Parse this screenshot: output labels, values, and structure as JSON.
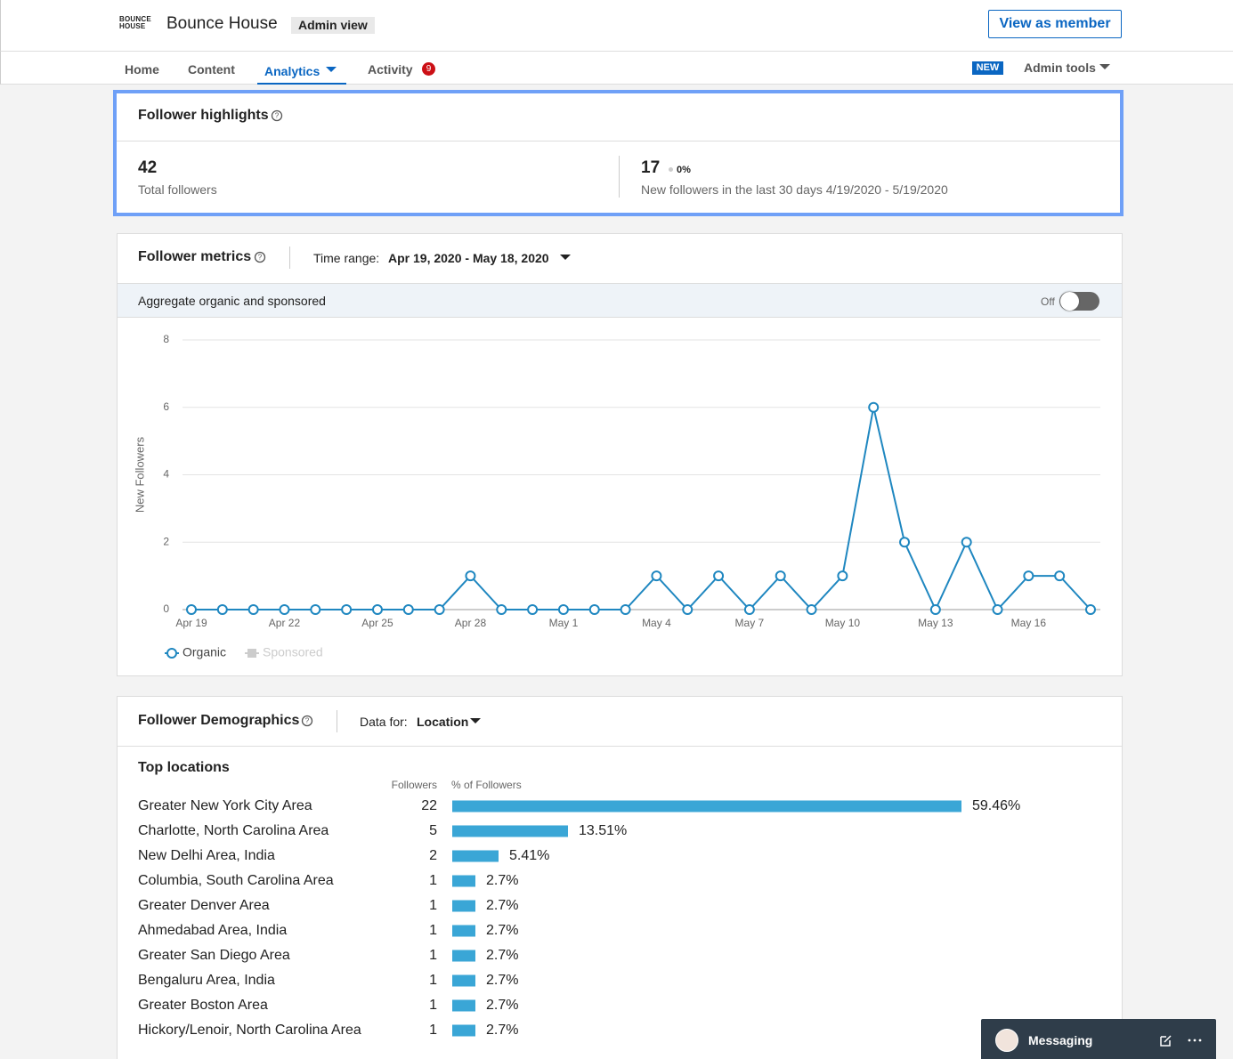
{
  "header": {
    "logo": [
      "BOUNCE",
      "HOUSE"
    ],
    "name": "Bounce House",
    "badge": "Admin view",
    "button": "View as member"
  },
  "nav": {
    "tabs": [
      "Home",
      "Content",
      "Analytics",
      "Activity"
    ],
    "activity_count": 9,
    "new_badge": "NEW",
    "admin_tools": "Admin tools"
  },
  "highlights": {
    "title": "Follower highlights",
    "total": 42,
    "total_label": "Total followers",
    "new": 17,
    "change": "0%",
    "new_label": "New followers in the last 30 days 4/19/2020 - 5/19/2020"
  },
  "metrics": {
    "title": "Follower metrics",
    "time_range_label": "Time range:",
    "time_range": "Apr 19, 2020 - May 18, 2020",
    "aggregate": "Aggregate organic and sponsored",
    "toggle": "Off"
  },
  "chart_data": {
    "type": "line",
    "y_label": "New Followers",
    "categories": [
      "Apr 19",
      null,
      null,
      "Apr 22",
      null,
      null,
      "Apr 25",
      null,
      null,
      "Apr 28",
      null,
      null,
      "May 1",
      null,
      null,
      "May 4",
      null,
      null,
      "May 7",
      null,
      null,
      "May 10",
      null,
      null,
      "May 13",
      null,
      null,
      "May 16",
      null,
      null
    ],
    "series": [
      {
        "name": "Organic",
        "color": "#1f87c0",
        "values": [
          0,
          0,
          0,
          0,
          0,
          0,
          0,
          0,
          0,
          1,
          0,
          0,
          0,
          0,
          0,
          1,
          0,
          1,
          0,
          1,
          0,
          1,
          6,
          2,
          0,
          2,
          0,
          1,
          1,
          0
        ]
      }
    ],
    "disabled_series": [
      {
        "name": "Sponsored",
        "color": "#cccccc"
      }
    ],
    "ylim": [
      0,
      8
    ],
    "yticks": [
      0,
      2,
      4,
      6,
      8
    ],
    "grid": true
  },
  "demographics": {
    "title": "Follower Demographics",
    "data_for_label": "Data for:",
    "data_for": "Location",
    "subtitle": "Top locations",
    "col_followers": "Followers",
    "col_percent": "% of Followers",
    "bar_color": "#3aa6d6",
    "rows": [
      {
        "location": "Greater New York City Area",
        "followers": 22,
        "percent": 59.46,
        "percent_label": "59.46%"
      },
      {
        "location": "Charlotte, North Carolina Area",
        "followers": 5,
        "percent": 13.51,
        "percent_label": "13.51%"
      },
      {
        "location": "New Delhi Area, India",
        "followers": 2,
        "percent": 5.41,
        "percent_label": "5.41%"
      },
      {
        "location": "Columbia, South Carolina Area",
        "followers": 1,
        "percent": 2.7,
        "percent_label": "2.7%"
      },
      {
        "location": "Greater Denver Area",
        "followers": 1,
        "percent": 2.7,
        "percent_label": "2.7%"
      },
      {
        "location": "Ahmedabad Area, India",
        "followers": 1,
        "percent": 2.7,
        "percent_label": "2.7%"
      },
      {
        "location": "Greater San Diego Area",
        "followers": 1,
        "percent": 2.7,
        "percent_label": "2.7%"
      },
      {
        "location": "Bengaluru Area, India",
        "followers": 1,
        "percent": 2.7,
        "percent_label": "2.7%"
      },
      {
        "location": "Greater Boston Area",
        "followers": 1,
        "percent": 2.7,
        "percent_label": "2.7%"
      },
      {
        "location": "Hickory/Lenoir, North Carolina Area",
        "followers": 1,
        "percent": 2.7,
        "percent_label": "2.7%"
      }
    ]
  },
  "messaging": {
    "label": "Messaging"
  }
}
